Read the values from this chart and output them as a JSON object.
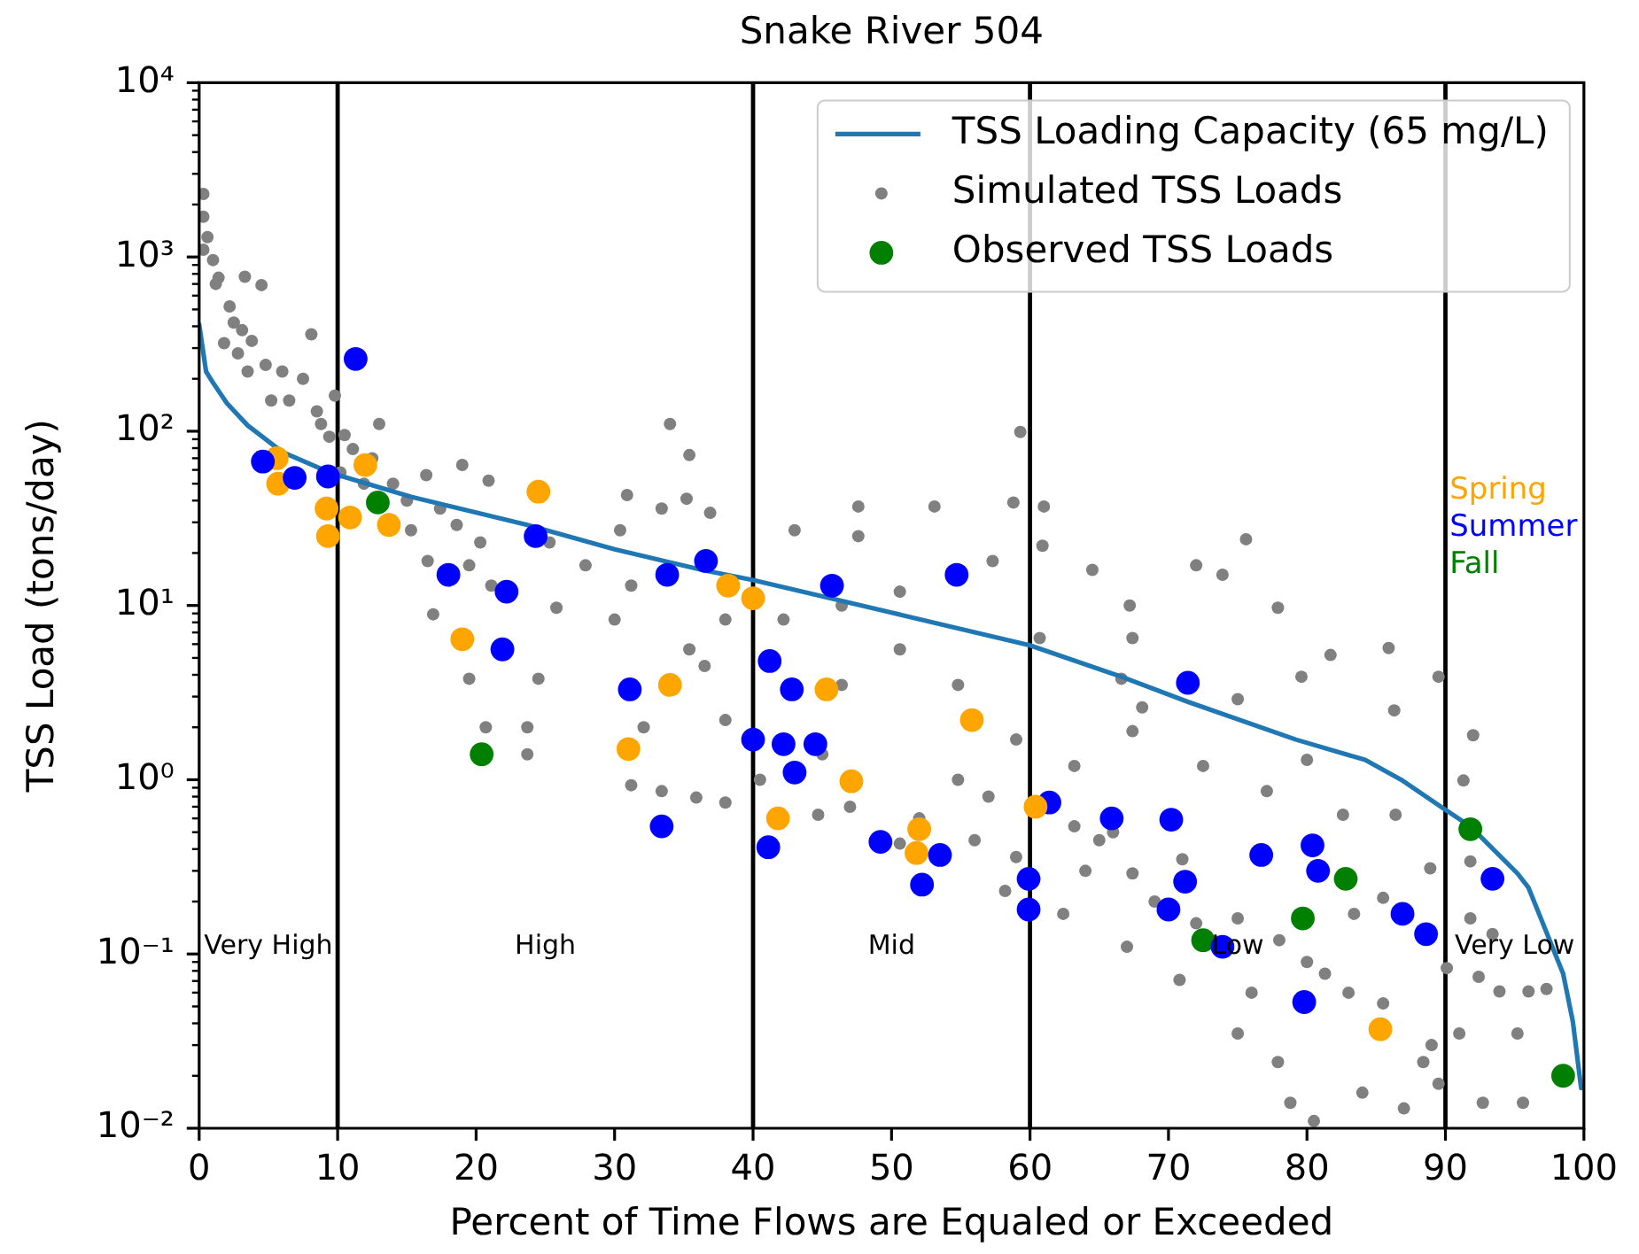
{
  "chart_data": {
    "type": "scatter",
    "title": "Snake River 504",
    "xlabel": "Percent of Time Flows are Equaled or Exceeded",
    "ylabel": "TSS Load (tons/day)",
    "xlim": [
      0,
      100
    ],
    "xticks": [
      0,
      10,
      20,
      30,
      40,
      50,
      60,
      70,
      80,
      90,
      100
    ],
    "ylim": [
      0.01,
      10000
    ],
    "yticks": [
      {
        "value": 0.01,
        "label": "10⁻²"
      },
      {
        "value": 0.02,
        "label": null
      },
      {
        "value": 0.03,
        "label": null
      },
      {
        "value": 0.04,
        "label": null
      },
      {
        "value": 0.05,
        "label": null
      },
      {
        "value": 0.06,
        "label": null
      },
      {
        "value": 0.07,
        "label": null
      },
      {
        "value": 0.08,
        "label": null
      },
      {
        "value": 0.09,
        "label": null
      },
      {
        "value": 0.1,
        "label": "10⁻¹"
      },
      {
        "value": 0.2,
        "label": null
      },
      {
        "value": 0.3,
        "label": null
      },
      {
        "value": 0.4,
        "label": null
      },
      {
        "value": 0.5,
        "label": null
      },
      {
        "value": 0.6,
        "label": null
      },
      {
        "value": 0.7,
        "label": null
      },
      {
        "value": 0.8,
        "label": null
      },
      {
        "value": 0.9,
        "label": null
      },
      {
        "value": 1,
        "label": "10⁰"
      },
      {
        "value": 2,
        "label": null
      },
      {
        "value": 3,
        "label": null
      },
      {
        "value": 4,
        "label": null
      },
      {
        "value": 5,
        "label": null
      },
      {
        "value": 6,
        "label": null
      },
      {
        "value": 7,
        "label": null
      },
      {
        "value": 8,
        "label": null
      },
      {
        "value": 9,
        "label": null
      },
      {
        "value": 10,
        "label": "10¹"
      },
      {
        "value": 20,
        "label": null
      },
      {
        "value": 30,
        "label": null
      },
      {
        "value": 40,
        "label": null
      },
      {
        "value": 50,
        "label": null
      },
      {
        "value": 60,
        "label": null
      },
      {
        "value": 70,
        "label": null
      },
      {
        "value": 80,
        "label": null
      },
      {
        "value": 90,
        "label": null
      },
      {
        "value": 100,
        "label": "10²"
      },
      {
        "value": 200,
        "label": null
      },
      {
        "value": 300,
        "label": null
      },
      {
        "value": 400,
        "label": null
      },
      {
        "value": 500,
        "label": null
      },
      {
        "value": 600,
        "label": null
      },
      {
        "value": 700,
        "label": null
      },
      {
        "value": 800,
        "label": null
      },
      {
        "value": 900,
        "label": null
      },
      {
        "value": 1000,
        "label": "10³"
      },
      {
        "value": 2000,
        "label": null
      },
      {
        "value": 3000,
        "label": null
      },
      {
        "value": 4000,
        "label": null
      },
      {
        "value": 5000,
        "label": null
      },
      {
        "value": 6000,
        "label": null
      },
      {
        "value": 7000,
        "label": null
      },
      {
        "value": 8000,
        "label": null
      },
      {
        "value": 9000,
        "label": null
      },
      {
        "value": 10000,
        "label": "10⁴"
      }
    ],
    "log": "y",
    "grid": false,
    "legend": "top right",
    "marker": "circle",
    "series": [
      {
        "name": "TSS Loading Capacity (65 mg/L)",
        "type": "line",
        "color": "#1f77b4",
        "marker": "none",
        "line_style": "solid",
        "x": [
          0,
          0.5,
          1,
          2,
          3.5,
          6,
          9.4,
          15.3,
          23.7,
          30,
          36.3,
          40,
          50,
          60,
          66.6,
          71.4,
          79.2,
          84.2,
          86.8,
          89.9,
          91.8,
          95.2,
          96,
          98.5,
          99.2,
          99.8
        ],
        "values": [
          410,
          220,
          190,
          145,
          108,
          76,
          58,
          42,
          29,
          21,
          16,
          14,
          9.1,
          5.9,
          3.9,
          2.8,
          1.7,
          1.3,
          1.0,
          0.68,
          0.54,
          0.29,
          0.24,
          0.077,
          0.041,
          0.017
        ]
      },
      {
        "name": "Simulated TSS Loads",
        "color": "#808080",
        "x": [
          0.3,
          0.3,
          0.3,
          1.0,
          1.4,
          2.2,
          1.8,
          3.1,
          3.3,
          4.5,
          3.5,
          6.0,
          5.2,
          8.5,
          8.1,
          9.4,
          9.8,
          11.1,
          10.2,
          11.9,
          13.0,
          14.0,
          15.3,
          16.4,
          16.5,
          17.4,
          18.6,
          19.0,
          20.3,
          20.9,
          25.3,
          27.9,
          30.4,
          30.9,
          33.4,
          34.0,
          35.4,
          35.2,
          16.9,
          19.5,
          20.7,
          23.7,
          31.2,
          33.4,
          35.9,
          25.8,
          24.5,
          32.1,
          23.7,
          30.0,
          35.4,
          19.5,
          21.1,
          31.2,
          38.0,
          44.7,
          50.6,
          58.2,
          62.4,
          67.0,
          50.6,
          46.4,
          54.8,
          59.0,
          63.2,
          63.2,
          54.8,
          59.0,
          67.4,
          38.0,
          36.5,
          38.0,
          42.2,
          46.4,
          50.6,
          60.7,
          66.6,
          47.6,
          57.3,
          67.4,
          36.9,
          43.0,
          47.6,
          53.1,
          59.3,
          58.8,
          61.0,
          60.9,
          64.5,
          75.6,
          72.0,
          73.9,
          77.9,
          85.9,
          89.5,
          81.7,
          67.2,
          70.8,
          75.0,
          77.9,
          78.8,
          65.0,
          75.0,
          81.3,
          85.5,
          88.4,
          83.4,
          85.5,
          88.9,
          82.6,
          86.4,
          77.1,
          72.5,
          80.0,
          67.4,
          68.1,
          86.3,
          79.6,
          75.0,
          80.5,
          84.0,
          87.0,
          89.5,
          91.3,
          92.0,
          90.1,
          92.4,
          93.9,
          95.2,
          95.6,
          92.7,
          91.8,
          93.4,
          91.8,
          96.0,
          91.0,
          97.3,
          40.5,
          47.0,
          52.0,
          56.0,
          64.0,
          69.0,
          72.0,
          45.0,
          57.0,
          66.0,
          71.0,
          78.0,
          80.0,
          83.0,
          89.0,
          76.0,
          0.6,
          1.2,
          2.5,
          2.8,
          3.8,
          4.8,
          6.5,
          7.5,
          8.8,
          10.5,
          12.5,
          15.0
        ],
        "values": [
          2300,
          1700,
          1100,
          960,
          760,
          520,
          320,
          380,
          770,
          690,
          220,
          220,
          150,
          130,
          360,
          93,
          160,
          79,
          58,
          50,
          110,
          50,
          27,
          56,
          18,
          36,
          29,
          64,
          23,
          52,
          23,
          17,
          27,
          43,
          36,
          110,
          73,
          41,
          8.9,
          3.8,
          2.0,
          1.4,
          0.93,
          0.86,
          0.79,
          9.7,
          3.8,
          2.0,
          2.0,
          8.3,
          5.6,
          17,
          13,
          13,
          0.74,
          0.63,
          0.43,
          0.23,
          0.17,
          0.11,
          5.6,
          3.5,
          3.5,
          1.7,
          1.2,
          0.54,
          1.0,
          0.36,
          0.29,
          2.2,
          4.5,
          8.3,
          8.3,
          10,
          12,
          6.5,
          3.8,
          25,
          18,
          6.5,
          34,
          27,
          37,
          37,
          99,
          39,
          37,
          22,
          16,
          24,
          17,
          15,
          9.7,
          5.7,
          3.9,
          5.2,
          10,
          0.071,
          0.035,
          0.024,
          0.014,
          0.45,
          0.16,
          0.077,
          0.052,
          0.024,
          0.17,
          0.21,
          0.31,
          0.63,
          0.63,
          0.86,
          1.2,
          1.3,
          1.9,
          2.6,
          2.5,
          3.9,
          2.9,
          0.011,
          0.016,
          0.013,
          0.018,
          0.99,
          1.8,
          0.083,
          0.074,
          0.061,
          0.035,
          0.014,
          0.014,
          0.16,
          0.13,
          0.34,
          0.061,
          0.035,
          0.063,
          1.0,
          0.7,
          0.6,
          0.45,
          0.3,
          0.2,
          0.15,
          1.4,
          0.8,
          0.5,
          0.35,
          0.12,
          0.09,
          0.06,
          0.03,
          0.06,
          1300,
          700,
          420,
          280,
          330,
          240,
          150,
          200,
          110,
          95,
          70,
          40
        ]
      },
      {
        "name": "Observed TSS Loads",
        "color": "#008000",
        "x": [
          5.6,
          4.6,
          5.7,
          6.9,
          9.2,
          9.3,
          9.3,
          10.9,
          11.3,
          12.0,
          12.9,
          13.7,
          18.0,
          19.0,
          20.4,
          21.9,
          22.2,
          24.3,
          24.5,
          31.0,
          31.1,
          33.4,
          33.8,
          34.0,
          36.6,
          38.2,
          40.0,
          40.0,
          41.1,
          41.2,
          41.8,
          42.2,
          42.8,
          43.0,
          44.5,
          45.3,
          45.7,
          47.1,
          49.2,
          51.8,
          52.0,
          52.2,
          53.5,
          54.7,
          55.8,
          59.9,
          59.9,
          61.4,
          60.4,
          65.9,
          70.0,
          70.2,
          71.2,
          71.4,
          72.5,
          73.9,
          76.7,
          79.7,
          79.8,
          80.4,
          80.8,
          82.8,
          85.3,
          86.9,
          88.6,
          91.8,
          93.4,
          98.5
        ],
        "values": [
          70,
          67,
          50,
          54,
          36,
          55,
          25,
          32,
          260,
          64,
          39,
          29,
          15,
          6.4,
          1.4,
          5.6,
          12,
          25,
          45,
          1.5,
          3.3,
          0.54,
          15,
          3.5,
          18,
          13,
          11,
          1.7,
          0.41,
          4.8,
          0.6,
          1.6,
          3.3,
          1.1,
          1.6,
          3.3,
          13,
          0.98,
          0.44,
          0.38,
          0.52,
          0.25,
          0.37,
          15,
          2.2,
          0.27,
          0.18,
          0.74,
          0.7,
          0.6,
          0.18,
          0.59,
          0.26,
          3.6,
          0.12,
          0.11,
          0.37,
          0.16,
          0.053,
          0.42,
          0.3,
          0.27,
          0.037,
          0.17,
          0.13,
          0.52,
          0.27,
          0.02
        ],
        "colors": [
          "#ffa500",
          "#0000ff",
          "#ffa500",
          "#0000ff",
          "#ffa500",
          "#0000ff",
          "#ffa500",
          "#ffa500",
          "#0000ff",
          "#ffa500",
          "#008000",
          "#ffa500",
          "#0000ff",
          "#ffa500",
          "#008000",
          "#0000ff",
          "#0000ff",
          "#0000ff",
          "#ffa500",
          "#ffa500",
          "#0000ff",
          "#0000ff",
          "#0000ff",
          "#ffa500",
          "#0000ff",
          "#ffa500",
          "#ffa500",
          "#0000ff",
          "#0000ff",
          "#0000ff",
          "#ffa500",
          "#0000ff",
          "#0000ff",
          "#0000ff",
          "#0000ff",
          "#ffa500",
          "#0000ff",
          "#ffa500",
          "#0000ff",
          "#ffa500",
          "#ffa500",
          "#0000ff",
          "#0000ff",
          "#0000ff",
          "#ffa500",
          "#0000ff",
          "#0000ff",
          "#0000ff",
          "#ffa500",
          "#0000ff",
          "#0000ff",
          "#0000ff",
          "#0000ff",
          "#0000ff",
          "#008000",
          "#0000ff",
          "#0000ff",
          "#008000",
          "#0000ff",
          "#0000ff",
          "#0000ff",
          "#008000",
          "#ffa500",
          "#0000ff",
          "#0000ff",
          "#008000",
          "#0000ff",
          "#008000"
        ]
      }
    ],
    "ref_lines": [
      {
        "axis": "x",
        "value": 10,
        "color": "#000000"
      },
      {
        "axis": "x",
        "value": 40,
        "color": "#000000"
      },
      {
        "axis": "x",
        "value": 60,
        "color": "#000000"
      },
      {
        "axis": "x",
        "value": 90,
        "color": "#000000"
      }
    ],
    "annotations": [
      "Very High",
      "High",
      "Mid",
      "Low",
      "Very Low",
      "Spring",
      "Summer",
      "Fall"
    ]
  }
}
